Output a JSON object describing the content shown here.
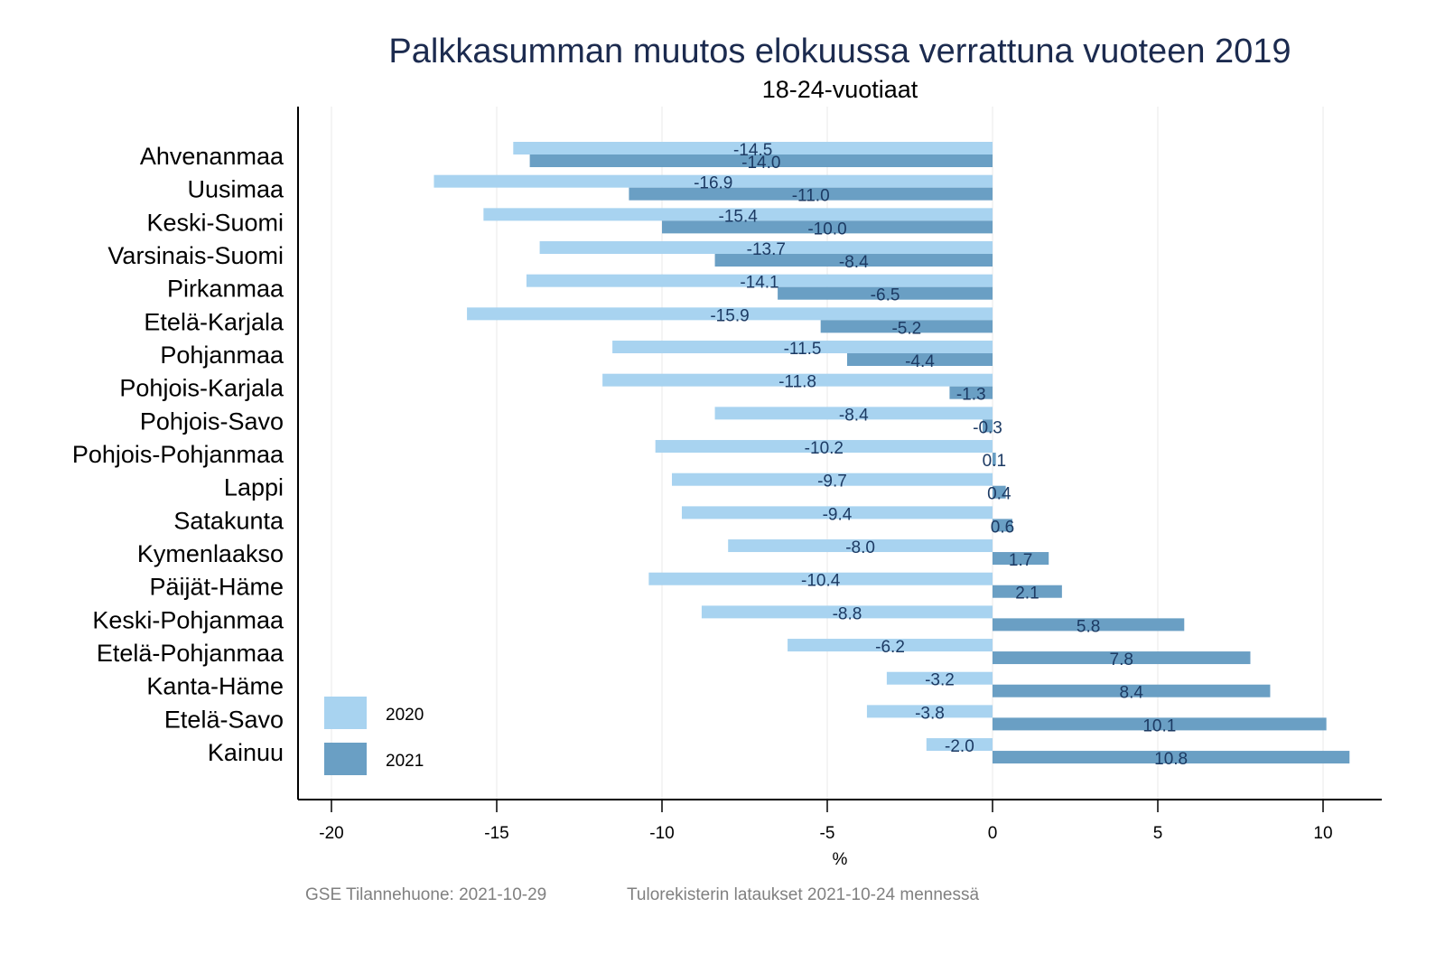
{
  "chart_data": {
    "type": "bar",
    "orientation": "horizontal",
    "title": "Palkkasumman muutos elokuussa verrattuna vuoteen 2019",
    "subtitle": "18-24-vuotiaat",
    "xlabel": "%",
    "ylabel": "",
    "xlim": [
      -21,
      11.5
    ],
    "xticks": [
      -20,
      -15,
      -10,
      -5,
      0,
      5,
      10
    ],
    "xtick_labels": [
      "-20",
      "-15",
      "-10",
      "-5",
      "0",
      "5",
      "10"
    ],
    "grid": "vertical",
    "legend_position": "bottom-left",
    "categories": [
      "Ahvenanmaa",
      "Uusimaa",
      "Keski-Suomi",
      "Varsinais-Suomi",
      "Pirkanmaa",
      "Etelä-Karjala",
      "Pohjanmaa",
      "Pohjois-Karjala",
      "Pohjois-Savo",
      "Pohjois-Pohjanmaa",
      "Lappi",
      "Satakunta",
      "Kymenlaakso",
      "Päijät-Häme",
      "Keski-Pohjanmaa",
      "Etelä-Pohjanmaa",
      "Kanta-Häme",
      "Etelä-Savo",
      "Kainuu"
    ],
    "series": [
      {
        "name": "2020",
        "color": "#a8d3f0",
        "values": [
          -14.5,
          -16.9,
          -15.4,
          -13.7,
          -14.1,
          -15.9,
          -11.5,
          -11.8,
          -8.4,
          -10.2,
          -9.7,
          -9.4,
          -8.0,
          -10.4,
          -8.8,
          -6.2,
          -3.2,
          -3.8,
          -2.0
        ]
      },
      {
        "name": "2021",
        "color": "#6a9fc4",
        "values": [
          -14.0,
          -11.0,
          -10.0,
          -8.4,
          -6.5,
          -5.2,
          -4.4,
          -1.3,
          -0.3,
          0.1,
          0.4,
          0.6,
          1.7,
          2.1,
          5.8,
          7.8,
          8.4,
          10.1,
          10.8
        ]
      }
    ],
    "data_label_color": "#1c3a63"
  },
  "footer": {
    "source": "GSE Tilannehuone: 2021-10-29",
    "note": "Tulorekisterin lataukset 2021-10-24 mennessä"
  }
}
